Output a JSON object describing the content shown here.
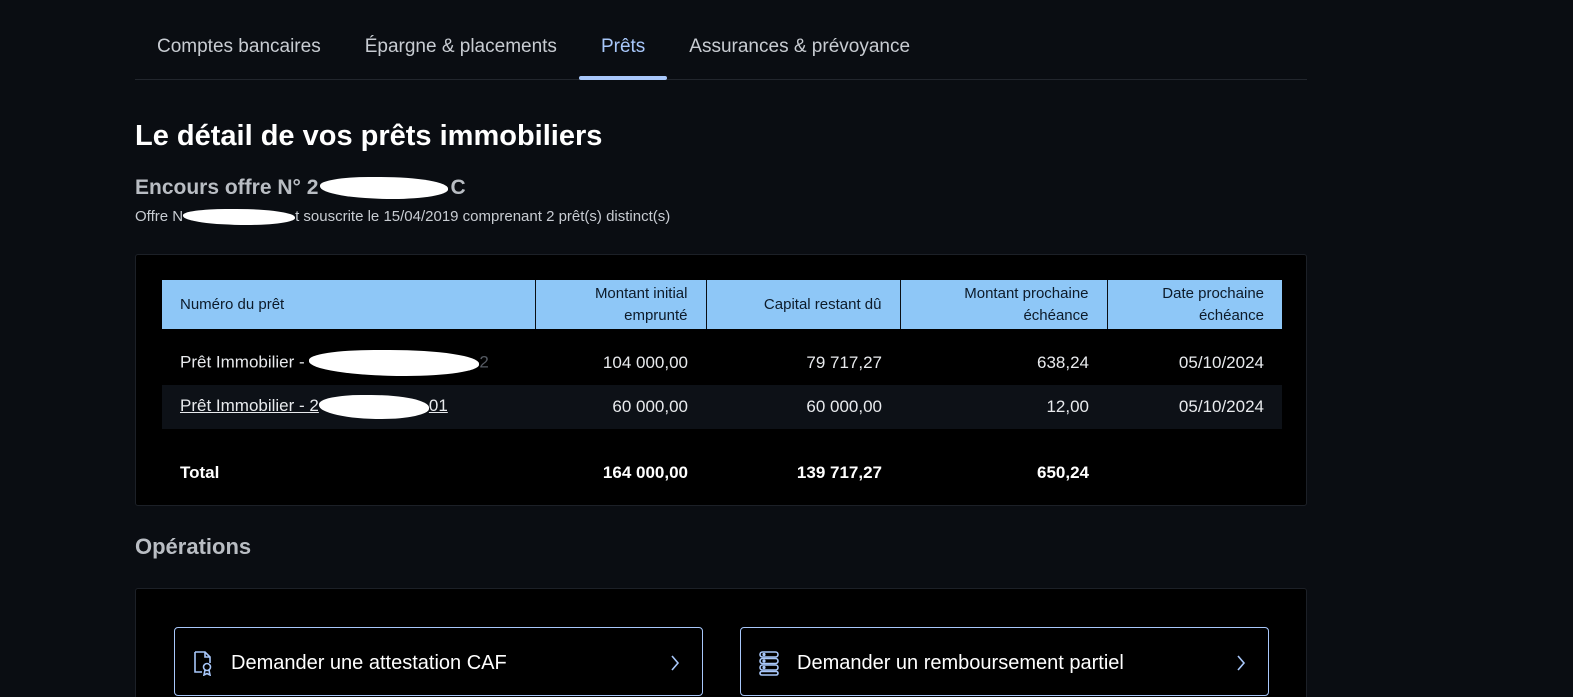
{
  "tabs": [
    {
      "label": "Comptes bancaires"
    },
    {
      "label": "Épargne & placements"
    },
    {
      "label": "Prêts",
      "active": true
    },
    {
      "label": "Assurances & prévoyance"
    }
  ],
  "page_title": "Le détail de vos prêts immobiliers",
  "offer": {
    "title_prefix": "Encours offre N°  2",
    "title_suffix": "C",
    "subtitle_prefix": "Offre N",
    "subtitle_suffix": "t souscrite le 15/04/2019 comprenant 2 prêt(s) distinct(s)"
  },
  "table": {
    "headers": {
      "loan_number": "Numéro du prêt",
      "initial_amount_l1": "Montant initial",
      "initial_amount_l2": "emprunté",
      "remaining_capital": "Capital restant dû",
      "next_amount_l1": "Montant prochaine",
      "next_amount_l2": "échéance",
      "next_date_l1": "Date prochaine",
      "next_date_l2": "échéance"
    },
    "rows": [
      {
        "loan_prefix": "Prêt Immobilier - ",
        "loan_suffix": "2",
        "initial_amount": "104 000,00",
        "remaining_capital": "79 717,27",
        "next_amount": "638,24",
        "next_date": "05/10/2024"
      },
      {
        "loan_prefix": "Prêt Immobilier - 2",
        "loan_suffix": "01",
        "initial_amount": "60 000,00",
        "remaining_capital": "60 000,00",
        "next_amount": "12,00",
        "next_date": "05/10/2024"
      }
    ],
    "total": {
      "label": "Total",
      "initial_amount": "164 000,00",
      "remaining_capital": "139 717,27",
      "next_amount": "650,24"
    }
  },
  "operations": {
    "title": "Opérations",
    "buttons": [
      {
        "label": "Demander une attestation CAF",
        "icon": "document-certificate-icon"
      },
      {
        "label": "Demander un remboursement partiel",
        "icon": "stacked-coins-icon"
      }
    ]
  },
  "colors": {
    "background": "#0a0d12",
    "accent": "#a8c7fa",
    "table_header": "#8ec7f7"
  }
}
